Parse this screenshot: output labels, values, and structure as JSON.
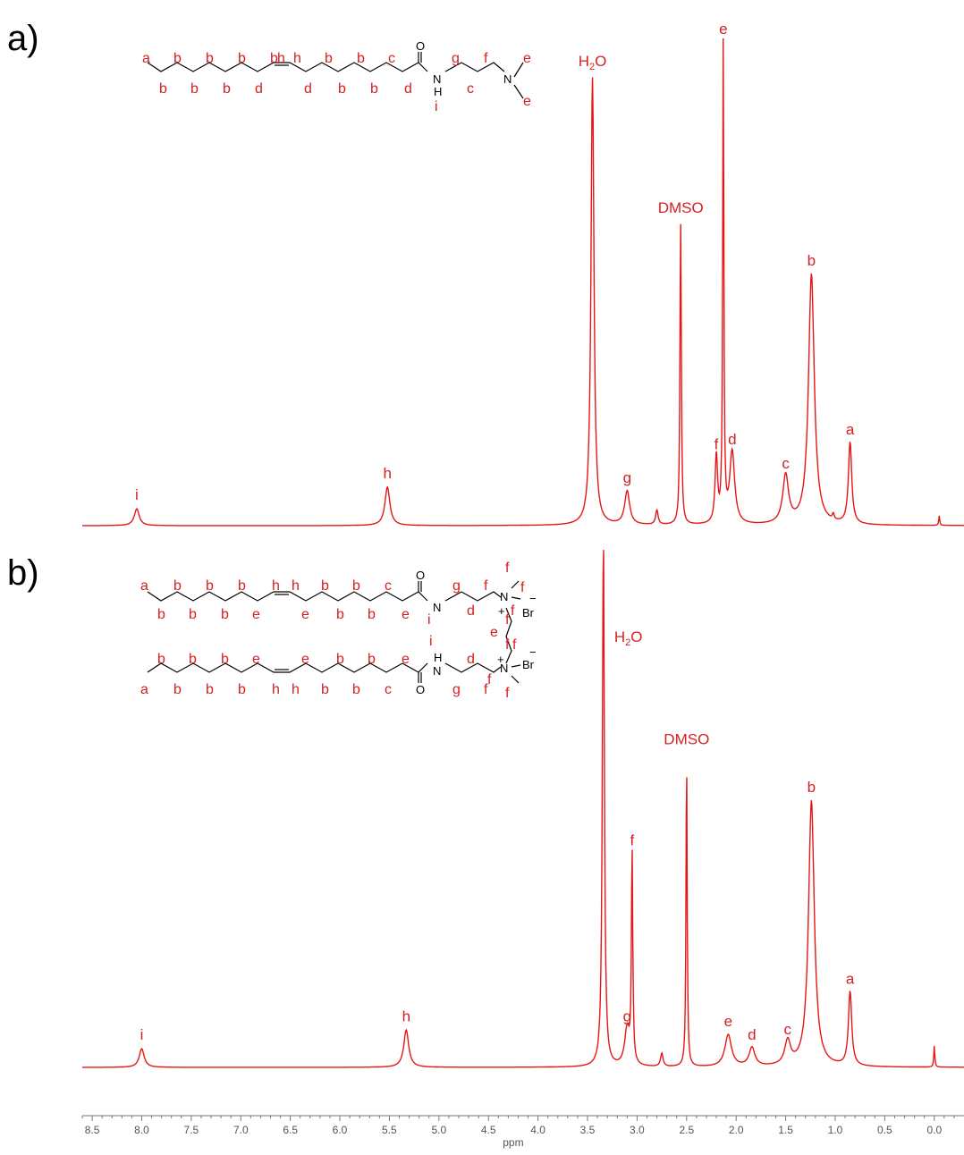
{
  "panels": [
    {
      "label": "a)"
    },
    {
      "label": "b)"
    }
  ],
  "structure_a": {
    "labels_top": [
      "a",
      "b",
      "b",
      "b",
      "b",
      "h",
      "h",
      "b",
      "b",
      "c",
      "g",
      "f",
      "e"
    ],
    "labels_bottom": [
      "b",
      "b",
      "b",
      "d",
      "d",
      "b",
      "b",
      "d",
      "c",
      "e"
    ],
    "label_i": "i",
    "atoms": {
      "o": "O",
      "nh": "N",
      "h": "H",
      "n": "N"
    }
  },
  "structure_b": {
    "chain1_top": [
      "a",
      "b",
      "b",
      "b",
      "h",
      "h",
      "b",
      "b",
      "c",
      "g",
      "f"
    ],
    "chain1_bottom": [
      "b",
      "b",
      "b",
      "e",
      "e",
      "b",
      "b",
      "e",
      "d"
    ],
    "chain1_i": "i",
    "chain2_top": [
      "b",
      "b",
      "b",
      "e",
      "e",
      "b",
      "b",
      "e",
      "i",
      "d"
    ],
    "chain2_bottom": [
      "a",
      "b",
      "b",
      "b",
      "h",
      "h",
      "b",
      "b",
      "c",
      "g",
      "f"
    ],
    "quat_labels": [
      "f",
      "f",
      "f",
      "f",
      "f",
      "f",
      "f",
      "f",
      "e"
    ],
    "atoms": {
      "o": "O",
      "nh": "N",
      "h": "H",
      "n_plus": "N",
      "plus": "+",
      "br": "Br",
      "minus": "−"
    }
  },
  "chart_data": [
    {
      "type": "line",
      "panel": "a)",
      "xlabel": "",
      "xlim": [
        8.6,
        -0.3
      ],
      "reversed_x": true,
      "peaks": [
        {
          "ppm": 8.05,
          "height": 0.035,
          "width": 0.03,
          "label": "i"
        },
        {
          "ppm": 5.52,
          "height": 0.08,
          "width": 0.03,
          "label": "h"
        },
        {
          "ppm": 3.45,
          "height": 0.93,
          "width": 0.018,
          "label": "H2O"
        },
        {
          "ppm": 3.1,
          "height": 0.07,
          "width": 0.03,
          "label": "g"
        },
        {
          "ppm": 2.8,
          "height": 0.03,
          "width": 0.015,
          "label": ""
        },
        {
          "ppm": 2.56,
          "height": 0.63,
          "width": 0.008,
          "label": "DMSO"
        },
        {
          "ppm": 2.2,
          "height": 0.14,
          "width": 0.015,
          "label": "f"
        },
        {
          "ppm": 2.13,
          "height": 1.0,
          "width": 0.007,
          "label": "e"
        },
        {
          "ppm": 2.04,
          "height": 0.15,
          "width": 0.03,
          "label": "d"
        },
        {
          "ppm": 1.5,
          "height": 0.1,
          "width": 0.035,
          "label": "c"
        },
        {
          "ppm": 1.24,
          "height": 0.52,
          "width": 0.035,
          "label": "b"
        },
        {
          "ppm": 0.85,
          "height": 0.17,
          "width": 0.02,
          "label": "a"
        },
        {
          "ppm": 1.02,
          "height": 0.012,
          "width": 0.01,
          "label": ""
        },
        {
          "ppm": -0.05,
          "height": 0.02,
          "width": 0.006,
          "label": ""
        }
      ]
    },
    {
      "type": "line",
      "panel": "b)",
      "xlabel": "ppm",
      "xlim": [
        8.6,
        -0.3
      ],
      "reversed_x": true,
      "ticks": [
        "8.5",
        "8.0",
        "7.5",
        "7.0",
        "6.5",
        "6.0",
        "5.5",
        "5.0",
        "4.5",
        "4.0",
        "3.5",
        "3.0",
        "2.5",
        "2.0",
        "1.5",
        "1.0",
        "0.5",
        "0.0"
      ],
      "peaks": [
        {
          "ppm": 8.0,
          "height": 0.035,
          "width": 0.03,
          "label": "i"
        },
        {
          "ppm": 5.33,
          "height": 0.07,
          "width": 0.03,
          "label": "h"
        },
        {
          "ppm": 3.34,
          "height": 1.0,
          "width": 0.012,
          "label": "H2O"
        },
        {
          "ppm": 3.1,
          "height": 0.07,
          "width": 0.03,
          "label": "g"
        },
        {
          "ppm": 3.05,
          "height": 0.4,
          "width": 0.008,
          "label": "f"
        },
        {
          "ppm": 2.75,
          "height": 0.025,
          "width": 0.015,
          "label": ""
        },
        {
          "ppm": 2.5,
          "height": 0.59,
          "width": 0.007,
          "label": "DMSO"
        },
        {
          "ppm": 2.08,
          "height": 0.06,
          "width": 0.04,
          "label": "e"
        },
        {
          "ppm": 1.84,
          "height": 0.035,
          "width": 0.035,
          "label": "d"
        },
        {
          "ppm": 1.48,
          "height": 0.045,
          "width": 0.035,
          "label": "c"
        },
        {
          "ppm": 1.24,
          "height": 0.5,
          "width": 0.035,
          "label": "b"
        },
        {
          "ppm": 0.85,
          "height": 0.14,
          "width": 0.02,
          "label": "a"
        },
        {
          "ppm": 0.0,
          "height": 0.04,
          "width": 0.006,
          "label": ""
        }
      ]
    }
  ]
}
